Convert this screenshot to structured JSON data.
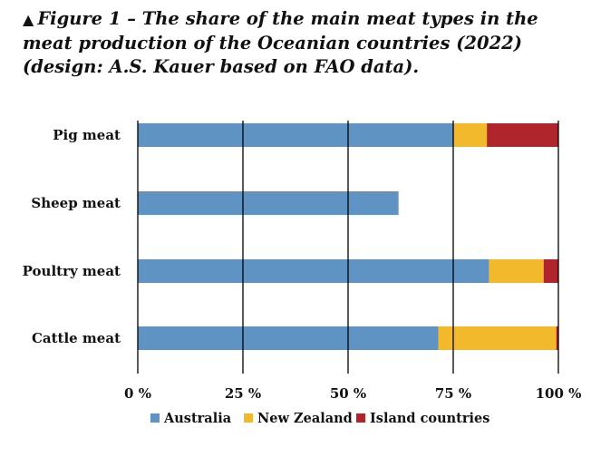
{
  "figure": {
    "line1": "Figure 1 – The share of the main meat types in the",
    "line2": "meat production of the Oceanian countries (2022)",
    "line3": "(design: A.S. Kauer based on FAO data)."
  },
  "colors": {
    "Australia": "#5e93c4",
    "New Zealand": "#f3b92c",
    "Island countries": "#b0242c"
  },
  "chart_data": {
    "type": "bar",
    "orientation": "horizontal",
    "stacked": true,
    "categories": [
      "Pig meat",
      "Sheep meat",
      "Poultry meat",
      "Cattle meat"
    ],
    "series": [
      {
        "name": "Australia",
        "values": [
          75,
          62,
          83.5,
          71.5
        ]
      },
      {
        "name": "New Zealand",
        "values": [
          8,
          0,
          13,
          28
        ]
      },
      {
        "name": "Island countries",
        "values": [
          17,
          0,
          3.5,
          0.5
        ]
      }
    ],
    "xlim": [
      0,
      100
    ],
    "xticks": [
      "0 %",
      "25 %",
      "50 %",
      "75 %",
      "100 %"
    ],
    "grid": "vertical",
    "legend": "bottom"
  }
}
